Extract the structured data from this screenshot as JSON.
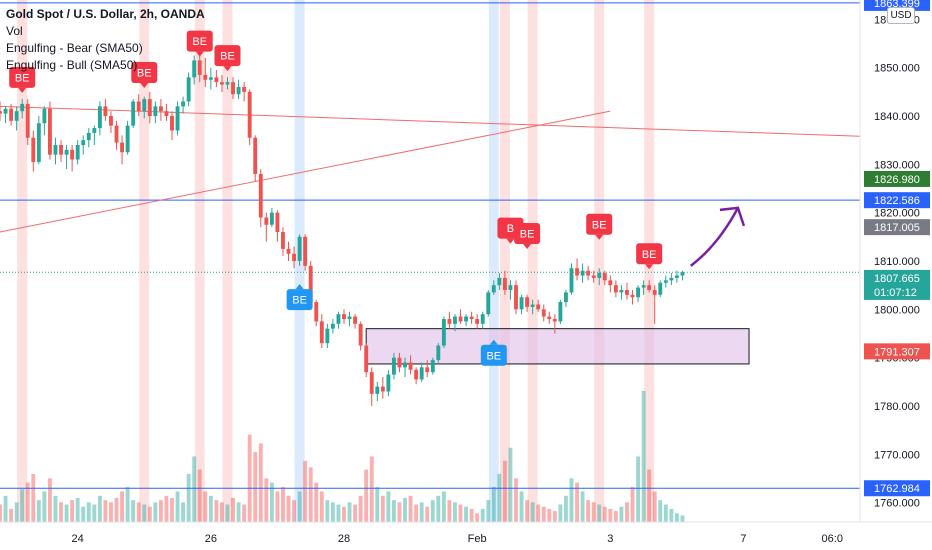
{
  "header": {
    "symbol": "Gold Spot / U.S. Dollar, 2h, OANDA",
    "indicators": [
      "Vol",
      "Engulfing - Bear (SMA50)",
      "Engulfing - Bull (SMA50)"
    ],
    "currency_badge": "USD"
  },
  "colors": {
    "up": "#26a69a",
    "down": "#ef5350",
    "bear_marker": "#f23645",
    "bull_marker": "#2196f3",
    "hline": "#2962ff",
    "trendline": "#f06c6c",
    "arrow": "#7b1fa2",
    "zone_fill": "#e1bee7",
    "bear_band": "#fde0e0",
    "bull_band": "#dbeafd"
  },
  "chart_data": {
    "type": "candlestick",
    "y_axis": {
      "range": [
        1756,
        1864
      ],
      "ticks": [
        "1760.000",
        "1770.000",
        "1780.000",
        "1790.000",
        "1800.000",
        "1810.000",
        "1820.000",
        "1830.000",
        "1840.000",
        "1850.000",
        "1860.000"
      ]
    },
    "x_axis": {
      "range": [
        0,
        155
      ],
      "ticks": [
        {
          "label": "24",
          "x": 14
        },
        {
          "label": "26",
          "x": 38
        },
        {
          "label": "28",
          "x": 62
        },
        {
          "label": "Feb",
          "x": 86
        },
        {
          "label": "3",
          "x": 110
        },
        {
          "label": "7",
          "x": 134
        },
        {
          "label": "06:0",
          "x": 150
        }
      ]
    },
    "price_labels": [
      {
        "value": "1863.399",
        "price": 1863.4,
        "color": "#2962ff"
      },
      {
        "value": "1826.980",
        "price": 1826.98,
        "color": "#2e7d32"
      },
      {
        "value": "1822.586",
        "price": 1822.586,
        "color": "#2962ff"
      },
      {
        "value": "1817.005",
        "price": 1817.005,
        "color": "#787b86"
      },
      {
        "value": "1807.665",
        "sub": "01:07:12",
        "price": 1806.5,
        "color": "#26a69a"
      },
      {
        "value": "1791.307",
        "price": 1791.307,
        "color": "#ef5350"
      },
      {
        "value": "1762.984",
        "price": 1762.984,
        "color": "#2962ff"
      }
    ],
    "current_price": 1807.665,
    "horizontal_lines": [
      1863.399,
      1822.586,
      1762.984
    ],
    "trendlines": [
      {
        "x1": 0,
        "y1": 1842.0,
        "x2": 155,
        "y2": 1835.8
      },
      {
        "x1": 0,
        "y1": 1816.0,
        "x2": 110,
        "y2": 1841.0
      }
    ],
    "zone": {
      "x1": 66,
      "x2": 135,
      "top": 1796.0,
      "bottom": 1788.7
    },
    "arrow": {
      "x1": 124.5,
      "y1": 1809.0,
      "x2": 133,
      "y2": 1821.0
    },
    "bear_bands": [
      4,
      26,
      36,
      41,
      91,
      96,
      108,
      117
    ],
    "bull_bands": [
      54,
      89
    ],
    "markers": [
      {
        "type": "bear",
        "label": "BE",
        "x": 4,
        "price": 1848.0
      },
      {
        "type": "bear",
        "label": "BE",
        "x": 26,
        "price": 1849.0
      },
      {
        "type": "bear",
        "label": "BE",
        "x": 36,
        "price": 1855.5
      },
      {
        "type": "bear",
        "label": "BE",
        "x": 41,
        "price": 1852.5
      },
      {
        "type": "bear",
        "label": "B",
        "x": 92,
        "price": 1816.8
      },
      {
        "type": "bear",
        "label": "BE",
        "x": 95,
        "price": 1815.7
      },
      {
        "type": "bear",
        "label": "BE",
        "x": 108,
        "price": 1817.6
      },
      {
        "type": "bear",
        "label": "BE",
        "x": 117,
        "price": 1811.5
      },
      {
        "type": "bull",
        "label": "BE",
        "x": 54,
        "price": 1802.0
      },
      {
        "type": "bull",
        "label": "BE",
        "x": 89,
        "price": 1790.5
      }
    ],
    "candles": [
      {
        "x": 0,
        "o": 1841.0,
        "h": 1843.0,
        "l": 1839.0,
        "c": 1840.5
      },
      {
        "x": 1,
        "o": 1840.5,
        "h": 1842.0,
        "l": 1838.5,
        "c": 1841.5
      },
      {
        "x": 2,
        "o": 1841.5,
        "h": 1842.5,
        "l": 1838.0,
        "c": 1839.0
      },
      {
        "x": 3,
        "o": 1839.0,
        "h": 1842.0,
        "l": 1837.0,
        "c": 1841.0
      },
      {
        "x": 4,
        "o": 1841.0,
        "h": 1843.5,
        "l": 1839.5,
        "c": 1842.5
      },
      {
        "x": 5,
        "o": 1842.5,
        "h": 1843.5,
        "l": 1834.0,
        "c": 1835.5
      },
      {
        "x": 6,
        "o": 1835.5,
        "h": 1837.0,
        "l": 1828.5,
        "c": 1830.5
      },
      {
        "x": 7,
        "o": 1830.5,
        "h": 1840.0,
        "l": 1830.0,
        "c": 1838.5
      },
      {
        "x": 8,
        "o": 1838.5,
        "h": 1842.0,
        "l": 1836.0,
        "c": 1841.5
      },
      {
        "x": 9,
        "o": 1841.5,
        "h": 1843.0,
        "l": 1831.0,
        "c": 1832.0
      },
      {
        "x": 10,
        "o": 1832.0,
        "h": 1835.5,
        "l": 1830.0,
        "c": 1834.0
      },
      {
        "x": 11,
        "o": 1834.0,
        "h": 1835.0,
        "l": 1830.5,
        "c": 1832.0
      },
      {
        "x": 12,
        "o": 1832.0,
        "h": 1834.0,
        "l": 1829.0,
        "c": 1833.0
      },
      {
        "x": 13,
        "o": 1833.0,
        "h": 1834.0,
        "l": 1828.5,
        "c": 1831.0
      },
      {
        "x": 14,
        "o": 1831.0,
        "h": 1835.0,
        "l": 1830.0,
        "c": 1834.0
      },
      {
        "x": 15,
        "o": 1834.0,
        "h": 1836.0,
        "l": 1832.0,
        "c": 1835.0
      },
      {
        "x": 16,
        "o": 1835.0,
        "h": 1837.5,
        "l": 1833.5,
        "c": 1836.5
      },
      {
        "x": 17,
        "o": 1836.5,
        "h": 1838.0,
        "l": 1834.0,
        "c": 1837.5
      },
      {
        "x": 18,
        "o": 1837.5,
        "h": 1843.0,
        "l": 1836.0,
        "c": 1842.0
      },
      {
        "x": 19,
        "o": 1842.0,
        "h": 1843.5,
        "l": 1839.0,
        "c": 1840.0
      },
      {
        "x": 20,
        "o": 1840.0,
        "h": 1841.0,
        "l": 1836.5,
        "c": 1838.0
      },
      {
        "x": 21,
        "o": 1838.0,
        "h": 1839.0,
        "l": 1833.0,
        "c": 1834.5
      },
      {
        "x": 22,
        "o": 1834.5,
        "h": 1836.0,
        "l": 1830.0,
        "c": 1832.5
      },
      {
        "x": 23,
        "o": 1832.5,
        "h": 1839.0,
        "l": 1832.0,
        "c": 1838.0
      },
      {
        "x": 24,
        "o": 1838.0,
        "h": 1843.5,
        "l": 1837.5,
        "c": 1843.0
      },
      {
        "x": 25,
        "o": 1843.0,
        "h": 1844.5,
        "l": 1840.0,
        "c": 1841.0
      },
      {
        "x": 26,
        "o": 1841.0,
        "h": 1844.0,
        "l": 1839.5,
        "c": 1843.5
      },
      {
        "x": 27,
        "o": 1843.5,
        "h": 1845.0,
        "l": 1838.5,
        "c": 1840.0
      },
      {
        "x": 28,
        "o": 1840.0,
        "h": 1843.0,
        "l": 1838.5,
        "c": 1842.0
      },
      {
        "x": 29,
        "o": 1842.0,
        "h": 1843.5,
        "l": 1839.0,
        "c": 1841.0
      },
      {
        "x": 30,
        "o": 1841.0,
        "h": 1842.5,
        "l": 1839.0,
        "c": 1840.0
      },
      {
        "x": 31,
        "o": 1840.0,
        "h": 1841.0,
        "l": 1835.0,
        "c": 1837.0
      },
      {
        "x": 32,
        "o": 1837.0,
        "h": 1843.0,
        "l": 1836.0,
        "c": 1842.0
      },
      {
        "x": 33,
        "o": 1842.0,
        "h": 1844.0,
        "l": 1840.5,
        "c": 1843.0
      },
      {
        "x": 34,
        "o": 1843.0,
        "h": 1849.0,
        "l": 1842.0,
        "c": 1848.0
      },
      {
        "x": 35,
        "o": 1848.0,
        "h": 1852.5,
        "l": 1846.5,
        "c": 1851.5
      },
      {
        "x": 36,
        "o": 1851.5,
        "h": 1853.5,
        "l": 1847.0,
        "c": 1848.5
      },
      {
        "x": 37,
        "o": 1848.5,
        "h": 1852.0,
        "l": 1846.0,
        "c": 1847.5
      },
      {
        "x": 38,
        "o": 1847.5,
        "h": 1850.0,
        "l": 1845.5,
        "c": 1848.0
      },
      {
        "x": 39,
        "o": 1848.0,
        "h": 1849.5,
        "l": 1846.0,
        "c": 1847.0
      },
      {
        "x": 40,
        "o": 1847.0,
        "h": 1848.5,
        "l": 1845.0,
        "c": 1846.5
      },
      {
        "x": 41,
        "o": 1846.5,
        "h": 1848.0,
        "l": 1845.5,
        "c": 1847.0
      },
      {
        "x": 42,
        "o": 1847.0,
        "h": 1848.0,
        "l": 1843.5,
        "c": 1844.5
      },
      {
        "x": 43,
        "o": 1844.5,
        "h": 1847.5,
        "l": 1843.5,
        "c": 1846.0
      },
      {
        "x": 44,
        "o": 1846.0,
        "h": 1847.0,
        "l": 1843.0,
        "c": 1845.0
      },
      {
        "x": 45,
        "o": 1845.0,
        "h": 1845.5,
        "l": 1834.0,
        "c": 1835.5
      },
      {
        "x": 46,
        "o": 1835.5,
        "h": 1836.0,
        "l": 1826.5,
        "c": 1828.0
      },
      {
        "x": 47,
        "o": 1828.0,
        "h": 1829.0,
        "l": 1817.0,
        "c": 1819.0
      },
      {
        "x": 48,
        "o": 1819.0,
        "h": 1820.0,
        "l": 1814.0,
        "c": 1817.5
      },
      {
        "x": 49,
        "o": 1817.5,
        "h": 1821.0,
        "l": 1817.0,
        "c": 1820.0
      },
      {
        "x": 50,
        "o": 1820.0,
        "h": 1820.5,
        "l": 1814.0,
        "c": 1816.0
      },
      {
        "x": 51,
        "o": 1816.0,
        "h": 1817.0,
        "l": 1811.0,
        "c": 1812.5
      },
      {
        "x": 52,
        "o": 1812.5,
        "h": 1814.0,
        "l": 1810.0,
        "c": 1811.5
      },
      {
        "x": 53,
        "o": 1811.5,
        "h": 1813.0,
        "l": 1808.5,
        "c": 1810.0
      },
      {
        "x": 54,
        "o": 1810.0,
        "h": 1815.5,
        "l": 1809.0,
        "c": 1815.0
      },
      {
        "x": 55,
        "o": 1815.0,
        "h": 1815.5,
        "l": 1808.0,
        "c": 1809.0
      },
      {
        "x": 56,
        "o": 1809.0,
        "h": 1810.0,
        "l": 1800.0,
        "c": 1801.5
      },
      {
        "x": 57,
        "o": 1801.5,
        "h": 1802.0,
        "l": 1796.5,
        "c": 1797.5
      },
      {
        "x": 58,
        "o": 1797.5,
        "h": 1799.0,
        "l": 1792.0,
        "c": 1793.0
      },
      {
        "x": 59,
        "o": 1793.0,
        "h": 1797.0,
        "l": 1792.0,
        "c": 1796.0
      },
      {
        "x": 60,
        "o": 1796.0,
        "h": 1798.0,
        "l": 1795.0,
        "c": 1797.0
      },
      {
        "x": 61,
        "o": 1797.0,
        "h": 1799.5,
        "l": 1796.0,
        "c": 1799.0
      },
      {
        "x": 62,
        "o": 1799.0,
        "h": 1800.0,
        "l": 1797.0,
        "c": 1798.0
      },
      {
        "x": 63,
        "o": 1798.0,
        "h": 1799.5,
        "l": 1796.5,
        "c": 1798.5
      },
      {
        "x": 64,
        "o": 1798.5,
        "h": 1799.0,
        "l": 1796.0,
        "c": 1797.0
      },
      {
        "x": 65,
        "o": 1797.0,
        "h": 1797.5,
        "l": 1791.5,
        "c": 1792.5
      },
      {
        "x": 66,
        "o": 1792.5,
        "h": 1793.0,
        "l": 1786.0,
        "c": 1787.0
      },
      {
        "x": 67,
        "o": 1787.0,
        "h": 1788.0,
        "l": 1780.0,
        "c": 1782.5
      },
      {
        "x": 68,
        "o": 1782.5,
        "h": 1785.0,
        "l": 1781.0,
        "c": 1784.0
      },
      {
        "x": 69,
        "o": 1784.0,
        "h": 1786.0,
        "l": 1781.5,
        "c": 1783.0
      },
      {
        "x": 70,
        "o": 1783.0,
        "h": 1787.5,
        "l": 1782.0,
        "c": 1786.5
      },
      {
        "x": 71,
        "o": 1786.5,
        "h": 1791.0,
        "l": 1785.5,
        "c": 1790.0
      },
      {
        "x": 72,
        "o": 1790.0,
        "h": 1791.0,
        "l": 1787.0,
        "c": 1788.0
      },
      {
        "x": 73,
        "o": 1788.0,
        "h": 1790.0,
        "l": 1786.0,
        "c": 1789.0
      },
      {
        "x": 74,
        "o": 1789.0,
        "h": 1790.5,
        "l": 1786.5,
        "c": 1787.5
      },
      {
        "x": 75,
        "o": 1787.5,
        "h": 1788.0,
        "l": 1784.5,
        "c": 1785.5
      },
      {
        "x": 76,
        "o": 1785.5,
        "h": 1789.0,
        "l": 1785.0,
        "c": 1788.0
      },
      {
        "x": 77,
        "o": 1788.0,
        "h": 1789.5,
        "l": 1786.0,
        "c": 1787.0
      },
      {
        "x": 78,
        "o": 1787.0,
        "h": 1790.0,
        "l": 1786.5,
        "c": 1789.5
      },
      {
        "x": 79,
        "o": 1789.5,
        "h": 1793.0,
        "l": 1789.0,
        "c": 1792.5
      },
      {
        "x": 80,
        "o": 1792.5,
        "h": 1798.5,
        "l": 1792.0,
        "c": 1798.0
      },
      {
        "x": 81,
        "o": 1798.0,
        "h": 1799.5,
        "l": 1796.0,
        "c": 1797.0
      },
      {
        "x": 82,
        "o": 1797.0,
        "h": 1799.0,
        "l": 1795.5,
        "c": 1798.5
      },
      {
        "x": 83,
        "o": 1798.5,
        "h": 1800.0,
        "l": 1797.0,
        "c": 1797.5
      },
      {
        "x": 84,
        "o": 1797.5,
        "h": 1799.0,
        "l": 1796.5,
        "c": 1798.5
      },
      {
        "x": 85,
        "o": 1798.5,
        "h": 1799.5,
        "l": 1797.0,
        "c": 1798.0
      },
      {
        "x": 86,
        "o": 1798.0,
        "h": 1799.0,
        "l": 1796.0,
        "c": 1797.0
      },
      {
        "x": 87,
        "o": 1797.0,
        "h": 1799.5,
        "l": 1796.0,
        "c": 1799.0
      },
      {
        "x": 88,
        "o": 1799.0,
        "h": 1804.0,
        "l": 1798.5,
        "c": 1803.5
      },
      {
        "x": 89,
        "o": 1803.5,
        "h": 1806.0,
        "l": 1803.0,
        "c": 1805.0
      },
      {
        "x": 90,
        "o": 1805.0,
        "h": 1807.5,
        "l": 1804.0,
        "c": 1806.5
      },
      {
        "x": 91,
        "o": 1806.5,
        "h": 1808.0,
        "l": 1803.0,
        "c": 1804.0
      },
      {
        "x": 92,
        "o": 1804.0,
        "h": 1806.0,
        "l": 1802.0,
        "c": 1805.0
      },
      {
        "x": 93,
        "o": 1805.0,
        "h": 1806.0,
        "l": 1799.0,
        "c": 1800.0
      },
      {
        "x": 94,
        "o": 1800.0,
        "h": 1803.0,
        "l": 1799.0,
        "c": 1802.5
      },
      {
        "x": 95,
        "o": 1802.5,
        "h": 1803.0,
        "l": 1799.5,
        "c": 1800.5
      },
      {
        "x": 96,
        "o": 1800.5,
        "h": 1802.0,
        "l": 1799.0,
        "c": 1801.0
      },
      {
        "x": 97,
        "o": 1801.0,
        "h": 1802.0,
        "l": 1799.5,
        "c": 1800.0
      },
      {
        "x": 98,
        "o": 1800.0,
        "h": 1801.0,
        "l": 1797.5,
        "c": 1798.5
      },
      {
        "x": 99,
        "o": 1798.5,
        "h": 1799.5,
        "l": 1797.0,
        "c": 1798.0
      },
      {
        "x": 100,
        "o": 1798.0,
        "h": 1799.0,
        "l": 1795.0,
        "c": 1797.5
      },
      {
        "x": 101,
        "o": 1797.5,
        "h": 1802.0,
        "l": 1797.0,
        "c": 1801.5
      },
      {
        "x": 102,
        "o": 1801.5,
        "h": 1804.0,
        "l": 1800.5,
        "c": 1803.5
      },
      {
        "x": 103,
        "o": 1803.5,
        "h": 1809.5,
        "l": 1803.0,
        "c": 1808.5
      },
      {
        "x": 104,
        "o": 1808.5,
        "h": 1810.5,
        "l": 1806.0,
        "c": 1807.0
      },
      {
        "x": 105,
        "o": 1807.0,
        "h": 1809.5,
        "l": 1805.5,
        "c": 1808.0
      },
      {
        "x": 106,
        "o": 1808.0,
        "h": 1809.0,
        "l": 1806.0,
        "c": 1807.0
      },
      {
        "x": 107,
        "o": 1807.0,
        "h": 1808.0,
        "l": 1805.5,
        "c": 1806.5
      },
      {
        "x": 108,
        "o": 1806.5,
        "h": 1808.5,
        "l": 1805.0,
        "c": 1807.5
      },
      {
        "x": 109,
        "o": 1807.5,
        "h": 1808.0,
        "l": 1805.0,
        "c": 1806.0
      },
      {
        "x": 110,
        "o": 1806.0,
        "h": 1807.0,
        "l": 1803.5,
        "c": 1805.0
      },
      {
        "x": 111,
        "o": 1805.0,
        "h": 1806.0,
        "l": 1802.5,
        "c": 1803.5
      },
      {
        "x": 112,
        "o": 1803.5,
        "h": 1805.0,
        "l": 1802.0,
        "c": 1804.0
      },
      {
        "x": 113,
        "o": 1804.0,
        "h": 1805.5,
        "l": 1802.0,
        "c": 1803.0
      },
      {
        "x": 114,
        "o": 1803.0,
        "h": 1804.0,
        "l": 1801.0,
        "c": 1802.5
      },
      {
        "x": 115,
        "o": 1802.5,
        "h": 1805.0,
        "l": 1801.5,
        "c": 1804.5
      },
      {
        "x": 116,
        "o": 1804.5,
        "h": 1806.0,
        "l": 1803.0,
        "c": 1805.0
      },
      {
        "x": 117,
        "o": 1805.0,
        "h": 1806.0,
        "l": 1803.5,
        "c": 1804.0
      },
      {
        "x": 118,
        "o": 1804.0,
        "h": 1805.0,
        "l": 1797.0,
        "c": 1803.0
      },
      {
        "x": 119,
        "o": 1803.0,
        "h": 1806.0,
        "l": 1802.5,
        "c": 1805.5
      },
      {
        "x": 120,
        "o": 1805.5,
        "h": 1807.0,
        "l": 1804.5,
        "c": 1806.0
      },
      {
        "x": 121,
        "o": 1806.0,
        "h": 1807.5,
        "l": 1805.0,
        "c": 1806.5
      },
      {
        "x": 122,
        "o": 1806.5,
        "h": 1808.0,
        "l": 1805.5,
        "c": 1807.0
      },
      {
        "x": 123,
        "o": 1807.0,
        "h": 1808.0,
        "l": 1806.0,
        "c": 1807.7
      }
    ],
    "volumes": [
      8,
      12,
      6,
      9,
      15,
      18,
      22,
      10,
      14,
      20,
      12,
      9,
      8,
      10,
      11,
      7,
      9,
      8,
      12,
      10,
      9,
      11,
      14,
      16,
      10,
      9,
      8,
      7,
      9,
      10,
      12,
      11,
      14,
      9,
      22,
      30,
      24,
      14,
      12,
      10,
      9,
      8,
      11,
      9,
      8,
      40,
      32,
      36,
      20,
      18,
      14,
      16,
      12,
      10,
      14,
      28,
      25,
      18,
      14,
      10,
      9,
      8,
      7,
      9,
      8,
      12,
      24,
      30,
      16,
      12,
      14,
      10,
      9,
      11,
      12,
      8,
      9,
      7,
      10,
      12,
      14,
      10,
      9,
      8,
      7,
      6,
      4,
      6,
      10,
      16,
      22,
      28,
      34,
      20,
      14,
      10,
      9,
      8,
      7,
      6,
      5,
      8,
      12,
      20,
      18,
      14,
      10,
      9,
      8,
      7,
      6,
      5,
      7,
      9,
      16,
      30,
      60,
      24,
      14,
      10,
      8,
      6,
      4,
      3
    ],
    "volume_max": 65
  }
}
